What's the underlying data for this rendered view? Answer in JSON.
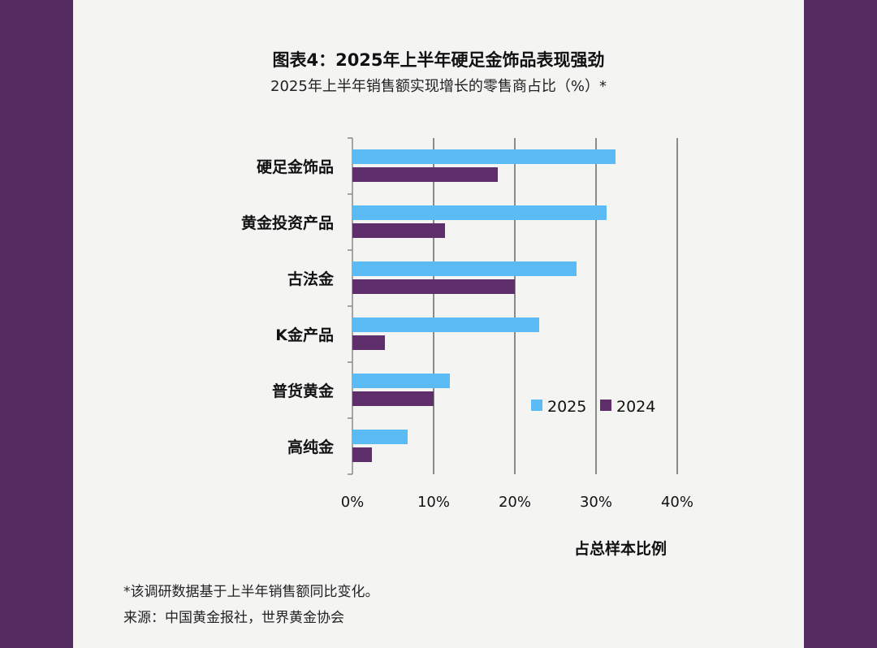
{
  "chart_data": {
    "type": "bar",
    "orientation": "horizontal",
    "title": "图表4：2025年上半年硬足金饰品表现强劲",
    "subtitle": "2025年上半年销售额实现增长的零售商占比（%）*",
    "categories": [
      "硬足金饰品",
      "黄金投资产品",
      "古法金",
      "K金产品",
      "普货黄金",
      "高纯金"
    ],
    "series": [
      {
        "name": "2025",
        "color": "#5bbcf5",
        "values": [
          32.4,
          31.3,
          27.6,
          23.0,
          12.0,
          6.8
        ]
      },
      {
        "name": "2024",
        "color": "#5e2f6b",
        "values": [
          17.9,
          11.4,
          20.0,
          4.0,
          10.0,
          2.4
        ]
      }
    ],
    "xlabel": "占总样本比例",
    "xlim": [
      0,
      40
    ],
    "xticks": [
      "0%",
      "10%",
      "20%",
      "30%",
      "40%"
    ],
    "grid": true,
    "legend": "bottom-right"
  },
  "footnotes": {
    "note": "*该调研数据基于上半年销售额同比变化。",
    "source": "来源：中国黄金报社，世界黄金协会"
  },
  "colors": {
    "background": "#552c60",
    "paper": "#f4f4f3"
  }
}
